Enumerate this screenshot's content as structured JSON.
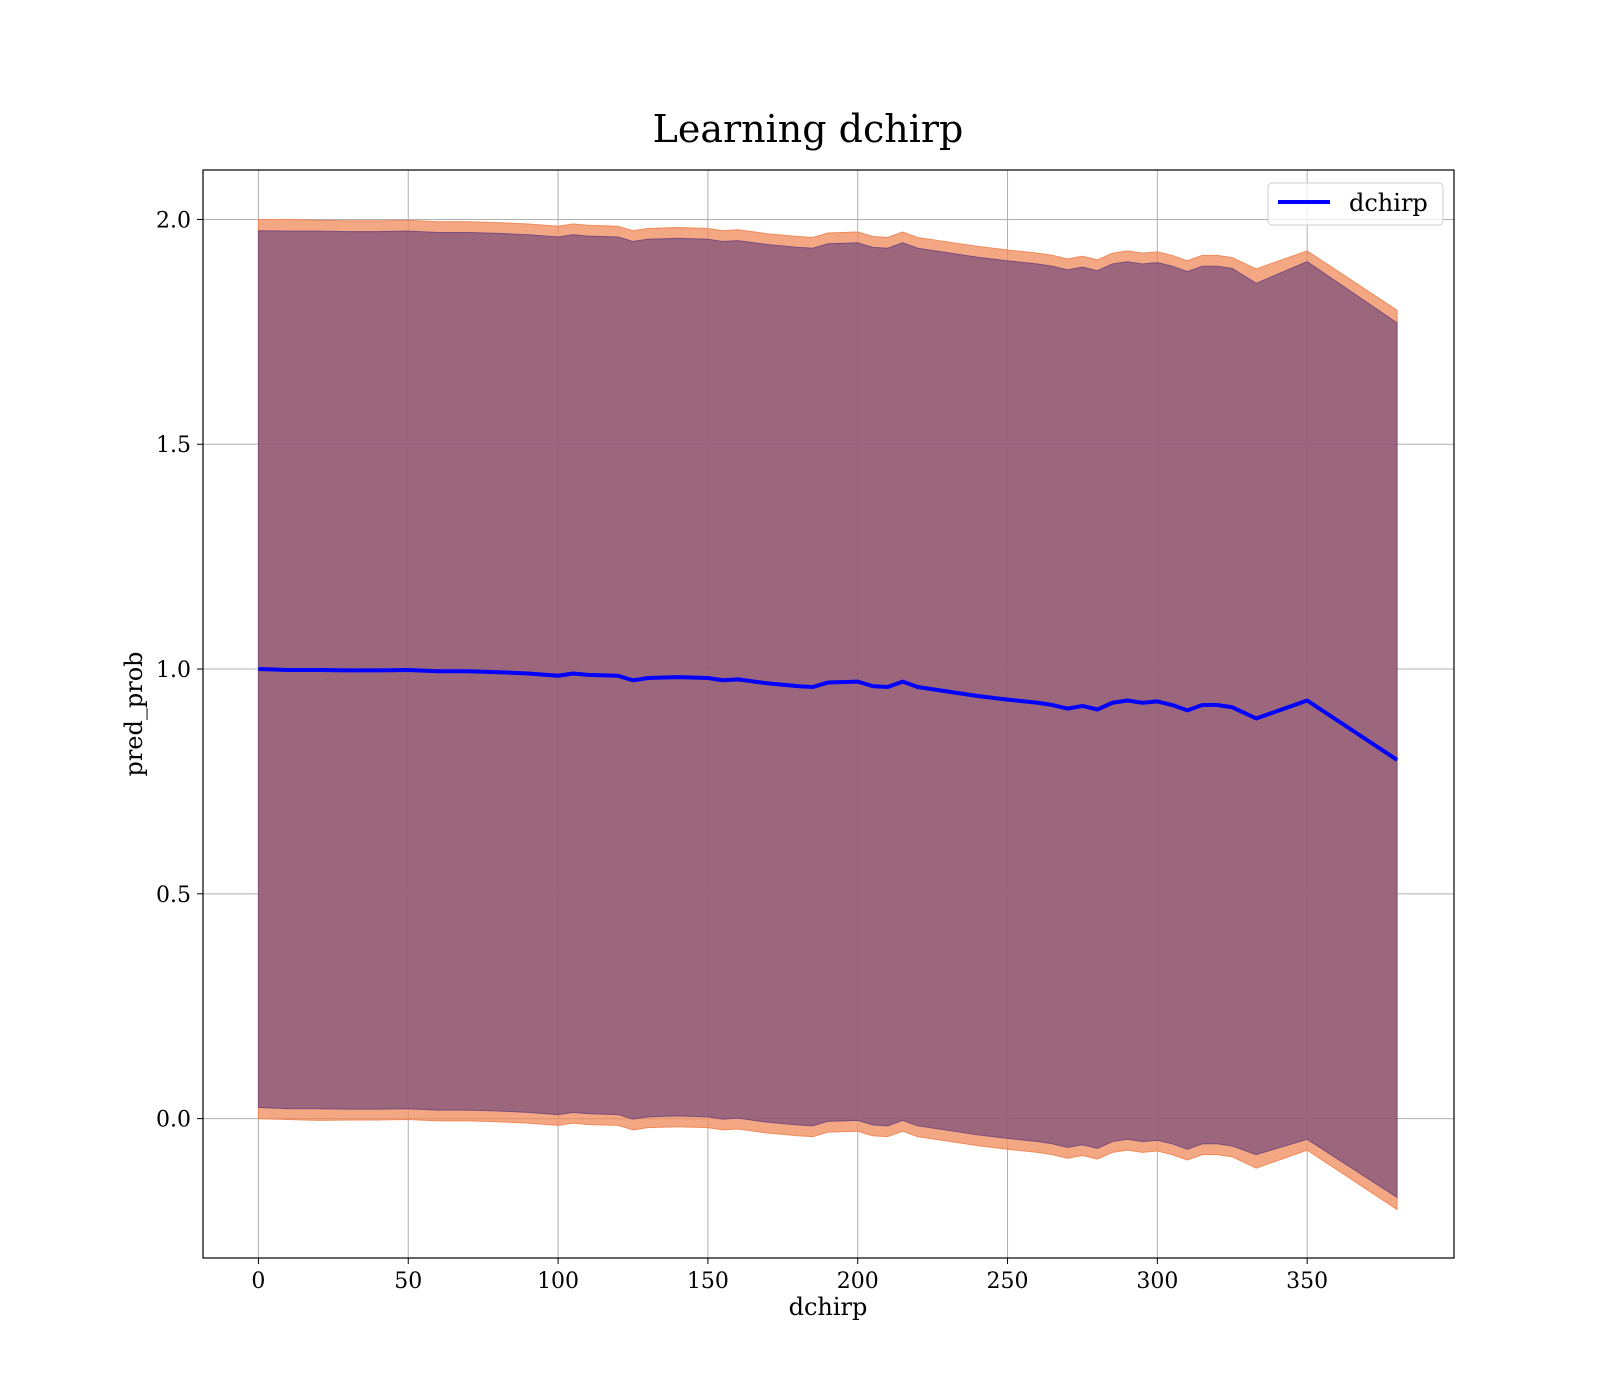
{
  "chart_data": {
    "type": "line",
    "title": "Learning dchirp",
    "xlabel": "dchirp",
    "ylabel": "pred_prob",
    "xlim": [
      -18.5,
      399
    ],
    "ylim": [
      -0.31,
      2.11
    ],
    "xticks": [
      0,
      50,
      100,
      150,
      200,
      250,
      300,
      350
    ],
    "xtick_labels": [
      "0",
      "50",
      "100",
      "150",
      "200",
      "250",
      "300",
      "350"
    ],
    "yticks": [
      0.0,
      0.5,
      1.0,
      1.5,
      2.0
    ],
    "ytick_labels": [
      "0.0",
      "0.5",
      "1.0",
      "1.5",
      "2.0"
    ],
    "grid": true,
    "legend": {
      "position": "top-right",
      "entries": [
        "dchirp"
      ]
    },
    "series": [
      {
        "name": "dchirp",
        "color": "#0000ff",
        "x": [
          0,
          10,
          20,
          30,
          40,
          50,
          60,
          70,
          80,
          90,
          100,
          105,
          110,
          120,
          125,
          130,
          140,
          150,
          155,
          160,
          170,
          180,
          185,
          190,
          200,
          205,
          210,
          215,
          220,
          230,
          240,
          250,
          260,
          265,
          270,
          275,
          280,
          285,
          290,
          295,
          300,
          305,
          310,
          315,
          320,
          325,
          333,
          350,
          380
        ],
        "y": [
          1.0,
          0.998,
          0.998,
          0.997,
          0.997,
          0.998,
          0.995,
          0.995,
          0.993,
          0.99,
          0.985,
          0.99,
          0.987,
          0.985,
          0.975,
          0.98,
          0.982,
          0.98,
          0.975,
          0.977,
          0.968,
          0.962,
          0.96,
          0.97,
          0.972,
          0.962,
          0.96,
          0.972,
          0.96,
          0.95,
          0.94,
          0.932,
          0.925,
          0.92,
          0.912,
          0.918,
          0.91,
          0.925,
          0.93,
          0.925,
          0.928,
          0.92,
          0.908,
          0.92,
          0.92,
          0.915,
          0.89,
          0.93,
          0.798
        ]
      }
    ],
    "bands": [
      {
        "color": "#f08a5a",
        "opacity": 0.75,
        "upper": [
          2.0,
          2.0,
          1.998,
          1.997,
          1.997,
          1.998,
          1.995,
          1.995,
          1.993,
          1.99,
          1.985,
          1.99,
          1.987,
          1.985,
          1.975,
          1.98,
          1.982,
          1.98,
          1.975,
          1.977,
          1.968,
          1.962,
          1.96,
          1.97,
          1.972,
          1.962,
          1.96,
          1.972,
          1.96,
          1.95,
          1.94,
          1.932,
          1.925,
          1.92,
          1.912,
          1.918,
          1.91,
          1.925,
          1.93,
          1.925,
          1.928,
          1.92,
          1.908,
          1.92,
          1.92,
          1.915,
          1.89,
          1.93,
          1.798
        ],
        "lower": [
          0.0,
          -0.002,
          -0.004,
          -0.003,
          -0.003,
          -0.002,
          -0.005,
          -0.005,
          -0.007,
          -0.01,
          -0.015,
          -0.01,
          -0.013,
          -0.015,
          -0.025,
          -0.02,
          -0.018,
          -0.02,
          -0.025,
          -0.023,
          -0.032,
          -0.038,
          -0.04,
          -0.03,
          -0.028,
          -0.038,
          -0.04,
          -0.028,
          -0.04,
          -0.05,
          -0.06,
          -0.068,
          -0.075,
          -0.08,
          -0.088,
          -0.082,
          -0.09,
          -0.075,
          -0.07,
          -0.075,
          -0.072,
          -0.08,
          -0.092,
          -0.08,
          -0.08,
          -0.085,
          -0.11,
          -0.07,
          -0.202
        ]
      },
      {
        "color": "#7a4e7c",
        "opacity": 0.72,
        "upper": [
          1.975,
          1.974,
          1.974,
          1.973,
          1.973,
          1.974,
          1.971,
          1.971,
          1.969,
          1.966,
          1.961,
          1.966,
          1.963,
          1.961,
          1.951,
          1.956,
          1.958,
          1.956,
          1.951,
          1.953,
          1.944,
          1.938,
          1.936,
          1.946,
          1.948,
          1.938,
          1.936,
          1.948,
          1.936,
          1.926,
          1.916,
          1.908,
          1.901,
          1.896,
          1.888,
          1.894,
          1.886,
          1.901,
          1.906,
          1.901,
          1.904,
          1.896,
          1.884,
          1.896,
          1.896,
          1.891,
          1.858,
          1.906,
          1.77
        ],
        "lower": [
          0.025,
          0.022,
          0.022,
          0.021,
          0.021,
          0.022,
          0.019,
          0.019,
          0.017,
          0.014,
          0.009,
          0.014,
          0.011,
          0.009,
          -0.001,
          0.004,
          0.006,
          0.004,
          -0.001,
          0.001,
          -0.008,
          -0.014,
          -0.016,
          -0.006,
          -0.004,
          -0.014,
          -0.016,
          -0.004,
          -0.016,
          -0.026,
          -0.036,
          -0.044,
          -0.051,
          -0.056,
          -0.064,
          -0.058,
          -0.066,
          -0.051,
          -0.046,
          -0.051,
          -0.048,
          -0.056,
          -0.068,
          -0.056,
          -0.056,
          -0.061,
          -0.08,
          -0.046,
          -0.175
        ]
      }
    ]
  }
}
